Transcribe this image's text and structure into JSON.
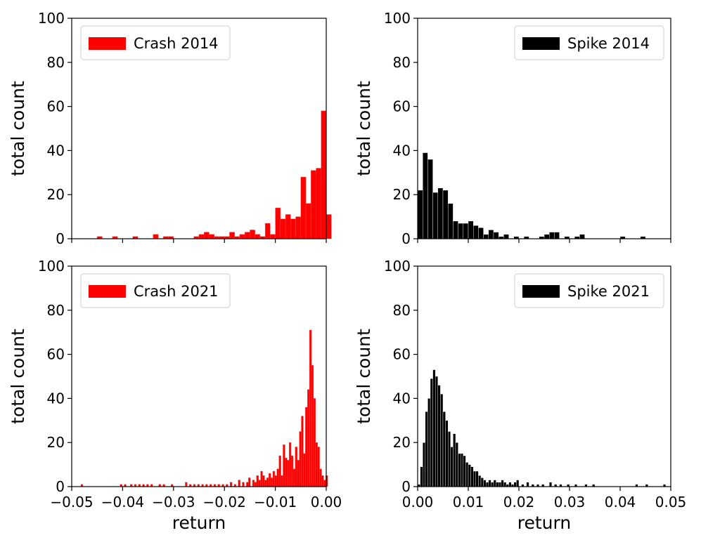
{
  "chart_data": [
    {
      "type": "bar",
      "xlim": [
        -0.05,
        0.0
      ],
      "ylim": [
        0,
        100
      ],
      "yticks": [
        0,
        20,
        40,
        60,
        80,
        100
      ],
      "ytick_labels": [
        "0",
        "20",
        "40",
        "60",
        "80",
        "100"
      ],
      "xticks": [],
      "xtick_labels": [],
      "xlabel": "",
      "ylabel": "total count",
      "legend": "Crash 2014",
      "legend_position": "upper-left",
      "color": "#ff0000",
      "bin_width": 0.001,
      "bins": [
        [
          -0.045,
          1
        ],
        [
          -0.042,
          1
        ],
        [
          -0.038,
          1
        ],
        [
          -0.034,
          2
        ],
        [
          -0.032,
          1
        ],
        [
          -0.031,
          1
        ],
        [
          -0.026,
          1
        ],
        [
          -0.025,
          2
        ],
        [
          -0.024,
          3
        ],
        [
          -0.023,
          2
        ],
        [
          -0.022,
          1
        ],
        [
          -0.021,
          1
        ],
        [
          -0.02,
          1
        ],
        [
          -0.019,
          3
        ],
        [
          -0.018,
          1
        ],
        [
          -0.017,
          2
        ],
        [
          -0.016,
          3
        ],
        [
          -0.015,
          4
        ],
        [
          -0.014,
          2
        ],
        [
          -0.013,
          1
        ],
        [
          -0.012,
          7
        ],
        [
          -0.011,
          2
        ],
        [
          -0.01,
          14
        ],
        [
          -0.009,
          9
        ],
        [
          -0.008,
          11
        ],
        [
          -0.007,
          9
        ],
        [
          -0.006,
          10
        ],
        [
          -0.005,
          28
        ],
        [
          -0.004,
          16
        ],
        [
          -0.003,
          31
        ],
        [
          -0.002,
          32
        ],
        [
          -0.001,
          58
        ],
        [
          0.0,
          11
        ]
      ]
    },
    {
      "type": "bar",
      "xlim": [
        0.0,
        0.05
      ],
      "ylim": [
        0,
        100
      ],
      "yticks": [
        0,
        20,
        40,
        60,
        80,
        100
      ],
      "ytick_labels": [
        "0",
        "20",
        "40",
        "60",
        "80",
        "100"
      ],
      "xticks": [],
      "xtick_labels": [],
      "xlabel": "",
      "ylabel": "total count",
      "legend": "Spike 2014",
      "legend_position": "upper-right",
      "color": "#000000",
      "bin_width": 0.001,
      "bins": [
        [
          0.0,
          22
        ],
        [
          0.001,
          39
        ],
        [
          0.002,
          36
        ],
        [
          0.003,
          21
        ],
        [
          0.004,
          23
        ],
        [
          0.005,
          22
        ],
        [
          0.006,
          16
        ],
        [
          0.007,
          8
        ],
        [
          0.008,
          7
        ],
        [
          0.009,
          7
        ],
        [
          0.01,
          8
        ],
        [
          0.011,
          6
        ],
        [
          0.012,
          5
        ],
        [
          0.013,
          2
        ],
        [
          0.014,
          4
        ],
        [
          0.015,
          3
        ],
        [
          0.016,
          1
        ],
        [
          0.017,
          2
        ],
        [
          0.019,
          1
        ],
        [
          0.021,
          1
        ],
        [
          0.024,
          1
        ],
        [
          0.025,
          2
        ],
        [
          0.026,
          3
        ],
        [
          0.027,
          3
        ],
        [
          0.029,
          1
        ],
        [
          0.031,
          1
        ],
        [
          0.032,
          2
        ],
        [
          0.04,
          1
        ],
        [
          0.044,
          1
        ]
      ]
    },
    {
      "type": "bar",
      "xlim": [
        -0.05,
        0.0
      ],
      "ylim": [
        0,
        100
      ],
      "yticks": [
        0,
        20,
        40,
        60,
        80,
        100
      ],
      "ytick_labels": [
        "0",
        "20",
        "40",
        "60",
        "80",
        "100"
      ],
      "xticks": [
        -0.05,
        -0.04,
        -0.03,
        -0.02,
        -0.01,
        0.0
      ],
      "xtick_labels": [
        "−0.05",
        "−0.04",
        "−0.03",
        "−0.02",
        "−0.01",
        "0.00"
      ],
      "xlabel": "return",
      "ylabel": "total count",
      "legend": "Crash 2021",
      "legend_position": "upper-left",
      "color": "#ff0000",
      "bin_width": 0.0004,
      "bins": [
        [
          -0.0482,
          1
        ],
        [
          -0.0405,
          1
        ],
        [
          -0.0397,
          1
        ],
        [
          -0.0385,
          1
        ],
        [
          -0.0377,
          1
        ],
        [
          -0.0369,
          1
        ],
        [
          -0.0361,
          1
        ],
        [
          -0.0353,
          1
        ],
        [
          -0.0345,
          1
        ],
        [
          -0.0329,
          1
        ],
        [
          -0.0321,
          1
        ],
        [
          -0.0305,
          1
        ],
        [
          -0.0277,
          2
        ],
        [
          -0.0269,
          1
        ],
        [
          -0.0261,
          1
        ],
        [
          -0.0253,
          1
        ],
        [
          -0.0245,
          1
        ],
        [
          -0.0237,
          1
        ],
        [
          -0.0229,
          1
        ],
        [
          -0.0221,
          1
        ],
        [
          -0.0213,
          1
        ],
        [
          -0.0205,
          1
        ],
        [
          -0.0197,
          1
        ],
        [
          -0.0189,
          2
        ],
        [
          -0.0181,
          1
        ],
        [
          -0.0173,
          3
        ],
        [
          -0.0165,
          2
        ],
        [
          -0.0157,
          2
        ],
        [
          -0.0153,
          4
        ],
        [
          -0.0145,
          3
        ],
        [
          -0.0141,
          2
        ],
        [
          -0.0137,
          5
        ],
        [
          -0.0133,
          3
        ],
        [
          -0.0129,
          7
        ],
        [
          -0.0125,
          5
        ],
        [
          -0.0121,
          3
        ],
        [
          -0.0117,
          4
        ],
        [
          -0.0113,
          6
        ],
        [
          -0.0109,
          4
        ],
        [
          -0.0105,
          7
        ],
        [
          -0.0101,
          5
        ],
        [
          -0.0097,
          8
        ],
        [
          -0.0093,
          14
        ],
        [
          -0.0089,
          5
        ],
        [
          -0.0085,
          19
        ],
        [
          -0.0081,
          13
        ],
        [
          -0.0077,
          12
        ],
        [
          -0.0073,
          20
        ],
        [
          -0.0069,
          14
        ],
        [
          -0.0065,
          8
        ],
        [
          -0.0061,
          18
        ],
        [
          -0.0057,
          12
        ],
        [
          -0.0053,
          25
        ],
        [
          -0.0049,
          32
        ],
        [
          -0.0045,
          15
        ],
        [
          -0.0041,
          36
        ],
        [
          -0.0037,
          44
        ],
        [
          -0.0033,
          71
        ],
        [
          -0.0029,
          55
        ],
        [
          -0.0025,
          40
        ],
        [
          -0.0021,
          20
        ],
        [
          -0.0017,
          18
        ],
        [
          -0.0013,
          8
        ],
        [
          -0.0009,
          5
        ],
        [
          -0.0005,
          3
        ],
        [
          -0.0001,
          5
        ]
      ]
    },
    {
      "type": "bar",
      "xlim": [
        0.0,
        0.05
      ],
      "ylim": [
        0,
        100
      ],
      "yticks": [
        0,
        20,
        40,
        60,
        80,
        100
      ],
      "ytick_labels": [
        "0",
        "20",
        "40",
        "60",
        "80",
        "100"
      ],
      "xticks": [
        0.0,
        0.01,
        0.02,
        0.03,
        0.04,
        0.05
      ],
      "xtick_labels": [
        "0.00",
        "0.01",
        "0.02",
        "0.03",
        "0.04",
        "0.05"
      ],
      "xlabel": "return",
      "ylabel": "total count",
      "legend": "Spike 2021",
      "legend_position": "upper-right",
      "color": "#000000",
      "bin_width": 0.0005,
      "bins": [
        [
          0.0,
          1
        ],
        [
          0.0005,
          9
        ],
        [
          0.001,
          20
        ],
        [
          0.0015,
          34
        ],
        [
          0.002,
          40
        ],
        [
          0.0025,
          49
        ],
        [
          0.003,
          53
        ],
        [
          0.0035,
          50
        ],
        [
          0.004,
          46
        ],
        [
          0.0045,
          42
        ],
        [
          0.005,
          34
        ],
        [
          0.0055,
          30
        ],
        [
          0.006,
          25
        ],
        [
          0.0065,
          18
        ],
        [
          0.007,
          24
        ],
        [
          0.0075,
          20
        ],
        [
          0.008,
          15
        ],
        [
          0.0085,
          15
        ],
        [
          0.009,
          14
        ],
        [
          0.0095,
          11
        ],
        [
          0.01,
          10
        ],
        [
          0.0105,
          9
        ],
        [
          0.011,
          7
        ],
        [
          0.0115,
          7
        ],
        [
          0.012,
          5
        ],
        [
          0.0125,
          4
        ],
        [
          0.013,
          3
        ],
        [
          0.0135,
          2
        ],
        [
          0.014,
          3
        ],
        [
          0.0145,
          2
        ],
        [
          0.015,
          3
        ],
        [
          0.0155,
          2
        ],
        [
          0.016,
          2
        ],
        [
          0.0165,
          3
        ],
        [
          0.017,
          2
        ],
        [
          0.0175,
          1
        ],
        [
          0.018,
          2
        ],
        [
          0.0185,
          1
        ],
        [
          0.019,
          2
        ],
        [
          0.0195,
          3
        ],
        [
          0.0205,
          1
        ],
        [
          0.0215,
          2
        ],
        [
          0.0225,
          1
        ],
        [
          0.0235,
          1
        ],
        [
          0.0245,
          1
        ],
        [
          0.026,
          2
        ],
        [
          0.027,
          1
        ],
        [
          0.028,
          1
        ],
        [
          0.0295,
          1
        ],
        [
          0.031,
          1
        ],
        [
          0.033,
          1
        ],
        [
          0.0345,
          1
        ],
        [
          0.043,
          1
        ],
        [
          0.045,
          1
        ],
        [
          0.0485,
          1
        ]
      ]
    }
  ]
}
